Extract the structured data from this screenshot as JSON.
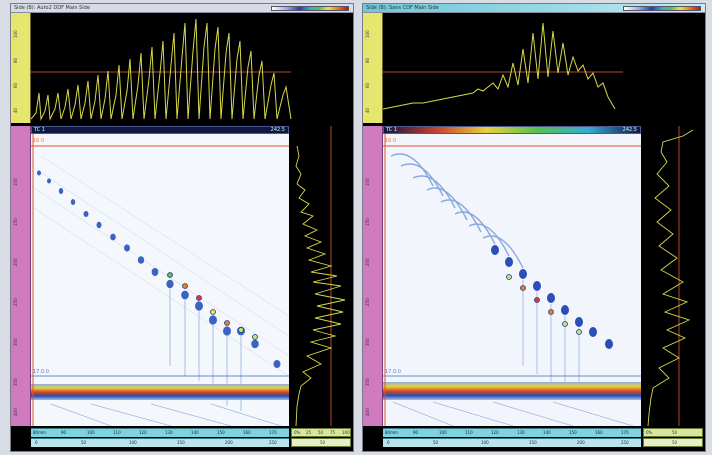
{
  "panels": [
    {
      "id": "left",
      "title": "Side (B): Auto2 DDF Main Side",
      "accent_title": false,
      "ascan_top_ticks": [
        "40",
        "60",
        "80",
        "100"
      ],
      "info_left": "TC 1",
      "info_right": "242.5",
      "gate_top": "16.0",
      "gate_bottom": "17.0.0",
      "scan_ticks": [
        "100",
        "150",
        "200",
        "250",
        "300",
        "350",
        "400",
        "450"
      ],
      "bottom_row1": [
        "80mm",
        "90",
        "100",
        "110",
        "120",
        "130",
        "140",
        "150",
        "160",
        "170"
      ],
      "bottom_row2": [
        "0",
        "50",
        "100",
        "150",
        "200",
        "250"
      ],
      "corner_row1": [
        "0%",
        "25",
        "50",
        "75",
        "100"
      ],
      "corner_row2": [
        "",
        "50"
      ]
    },
    {
      "id": "right",
      "title": "Side (B): Sans CDF Main Side",
      "accent_title": true,
      "ascan_top_ticks": [
        "40",
        "60",
        "80",
        "100"
      ],
      "info_left": "TC 1",
      "info_right": "242.5",
      "gate_top": "16.0",
      "gate_bottom": "17.0.0",
      "scan_ticks": [
        "100",
        "150",
        "200",
        "250",
        "300",
        "350",
        "400",
        "450"
      ],
      "bottom_row1": [
        "80mm",
        "90",
        "100",
        "110",
        "120",
        "130",
        "140",
        "150",
        "160",
        "170"
      ],
      "bottom_row2": [
        "0",
        "50",
        "100",
        "150",
        "200",
        "250"
      ],
      "corner_row1": [
        "0%",
        "50"
      ],
      "corner_row2": [
        "",
        "50"
      ]
    }
  ],
  "colors": {
    "signal": "#d8d84a",
    "gate": "#e0703a",
    "gate_blue": "#4060d0",
    "backwall": "#e05028"
  }
}
